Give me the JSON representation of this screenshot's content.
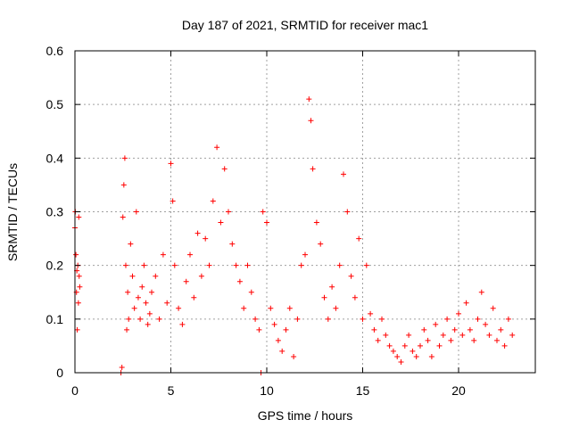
{
  "chart_data": {
    "type": "scatter",
    "title": "Day 187 of 2021, SRMTID for receiver mac1",
    "xlabel": "GPS time / hours",
    "ylabel": "SRMTID / TECUs",
    "xlim": [
      0,
      24
    ],
    "ylim": [
      0,
      0.6
    ],
    "xticks": [
      0,
      5,
      10,
      15,
      20
    ],
    "xtick_labels": [
      "0",
      "5",
      "10",
      "15",
      "20"
    ],
    "yticks": [
      0,
      0.1,
      0.2,
      0.3,
      0.4,
      0.5,
      0.6
    ],
    "ytick_labels": [
      "0",
      "0.1",
      "0.2",
      "0.3",
      "0.4",
      "0.5",
      "0.6"
    ],
    "grid": true,
    "marker": "+",
    "color": "#ff0000",
    "series": [
      {
        "name": "SRMTID",
        "x": [
          0.0,
          0.02,
          0.05,
          0.08,
          0.1,
          0.12,
          0.15,
          0.18,
          0.2,
          0.22,
          0.25,
          2.4,
          2.45,
          2.5,
          2.55,
          2.6,
          2.65,
          2.7,
          2.75,
          2.8,
          2.9,
          3.0,
          3.1,
          3.2,
          3.3,
          3.4,
          3.5,
          3.6,
          3.7,
          3.8,
          3.9,
          4.0,
          4.2,
          4.4,
          4.6,
          4.8,
          5.0,
          5.1,
          5.2,
          5.4,
          5.6,
          5.8,
          6.0,
          6.2,
          6.4,
          6.6,
          6.8,
          7.0,
          7.2,
          7.4,
          7.6,
          7.8,
          8.0,
          8.2,
          8.4,
          8.6,
          8.8,
          9.0,
          9.2,
          9.4,
          9.6,
          9.8,
          10.0,
          10.2,
          10.4,
          10.6,
          10.8,
          11.0,
          11.2,
          11.4,
          11.6,
          11.8,
          12.0,
          12.2,
          12.3,
          12.4,
          12.6,
          12.8,
          13.0,
          13.2,
          13.4,
          13.6,
          13.8,
          14.0,
          14.2,
          14.4,
          14.6,
          14.8,
          15.0,
          15.2,
          15.4,
          15.6,
          15.8,
          16.0,
          16.2,
          16.4,
          16.6,
          16.8,
          17.0,
          17.2,
          17.4,
          17.6,
          17.8,
          18.0,
          18.2,
          18.4,
          18.6,
          18.8,
          19.0,
          19.2,
          19.4,
          19.6,
          19.8,
          20.0,
          20.2,
          20.4,
          20.6,
          20.8,
          21.0,
          21.2,
          21.4,
          21.6,
          21.8,
          22.0,
          22.2,
          22.4,
          22.6,
          22.8,
          9.7
        ],
        "y": [
          0.27,
          0.3,
          0.22,
          0.15,
          0.19,
          0.08,
          0.2,
          0.13,
          0.29,
          0.18,
          0.16,
          0.0,
          0.01,
          0.29,
          0.35,
          0.4,
          0.2,
          0.08,
          0.15,
          0.1,
          0.24,
          0.18,
          0.12,
          0.3,
          0.14,
          0.1,
          0.16,
          0.2,
          0.13,
          0.09,
          0.11,
          0.15,
          0.18,
          0.1,
          0.22,
          0.13,
          0.39,
          0.32,
          0.2,
          0.12,
          0.09,
          0.17,
          0.22,
          0.14,
          0.26,
          0.18,
          0.25,
          0.2,
          0.32,
          0.42,
          0.28,
          0.38,
          0.3,
          0.24,
          0.2,
          0.17,
          0.12,
          0.2,
          0.15,
          0.1,
          0.08,
          0.3,
          0.28,
          0.12,
          0.09,
          0.06,
          0.04,
          0.08,
          0.12,
          0.03,
          0.1,
          0.2,
          0.22,
          0.51,
          0.47,
          0.38,
          0.28,
          0.24,
          0.14,
          0.1,
          0.16,
          0.12,
          0.2,
          0.37,
          0.3,
          0.18,
          0.14,
          0.25,
          0.1,
          0.2,
          0.11,
          0.08,
          0.06,
          0.1,
          0.07,
          0.05,
          0.04,
          0.03,
          0.02,
          0.05,
          0.07,
          0.04,
          0.03,
          0.05,
          0.08,
          0.06,
          0.03,
          0.09,
          0.05,
          0.07,
          0.1,
          0.06,
          0.08,
          0.11,
          0.07,
          0.13,
          0.08,
          0.06,
          0.1,
          0.15,
          0.09,
          0.07,
          0.12,
          0.06,
          0.08,
          0.05,
          0.1,
          0.07,
          0.0
        ]
      }
    ]
  }
}
